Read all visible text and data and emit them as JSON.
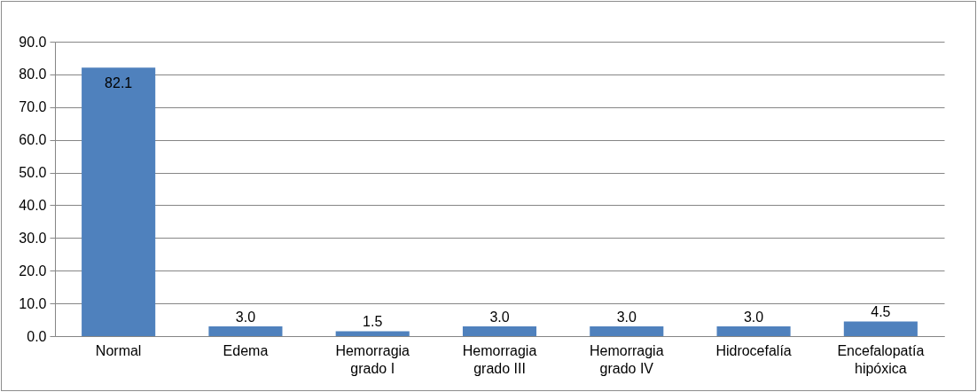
{
  "chart_data": {
    "type": "bar",
    "categories": [
      "Normal",
      "Edema",
      "Hemorragia grado I",
      "Hemorragia grado III",
      "Hemorragia grado IV",
      "Hidrocefalía",
      "Encefalopatía hipóxica"
    ],
    "values": [
      82.1,
      3.0,
      1.5,
      3.0,
      3.0,
      3.0,
      4.5
    ],
    "color": "#4f81bd",
    "value_labels": [
      "82.1",
      "3.0",
      "1.5",
      "3.0",
      "3.0",
      "3.0",
      "4.5"
    ],
    "grid": "y",
    "ylim": [
      0,
      90
    ],
    "yticks": [
      {
        "value": 0,
        "label": "0.0"
      },
      {
        "value": 10,
        "label": "10.0"
      },
      {
        "value": 20,
        "label": "20.0"
      },
      {
        "value": 30,
        "label": "30.0"
      },
      {
        "value": 40,
        "label": "40.0"
      },
      {
        "value": 50,
        "label": "50.0"
      },
      {
        "value": 60,
        "label": "60.0"
      },
      {
        "value": 70,
        "label": "70.0"
      },
      {
        "value": 80,
        "label": "80.0"
      },
      {
        "value": 90,
        "label": "90.0"
      }
    ]
  }
}
